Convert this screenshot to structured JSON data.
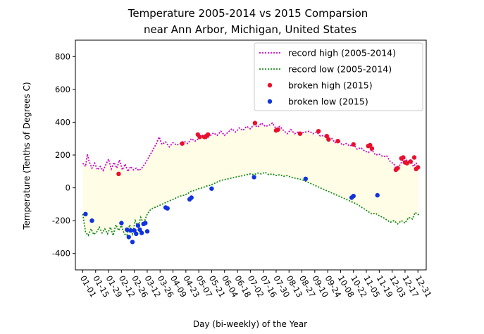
{
  "chart_data": {
    "type": "line",
    "title": "Temperature 2005-2014 vs 2015 Comparsion",
    "subtitle": "near Ann Arbor, Michigan, United States",
    "xlabel": "Day (bi-weekly) of the Year",
    "ylabel": "Temperature (Tenths of Degrees C)",
    "xlim": [
      -8,
      373
    ],
    "ylim": [
      -500,
      900
    ],
    "yticks": [
      -400,
      -200,
      0,
      200,
      400,
      600,
      800
    ],
    "xtick_days": [
      0,
      14,
      28,
      42,
      56,
      70,
      84,
      98,
      112,
      126,
      140,
      154,
      168,
      182,
      196,
      210,
      224,
      238,
      252,
      266,
      280,
      294,
      308,
      322,
      336,
      350,
      364
    ],
    "xtick_labels": [
      "01-01",
      "01-15",
      "01-29",
      "02-12",
      "02-26",
      "03-12",
      "03-26",
      "04-09",
      "04-23",
      "05-07",
      "05-21",
      "06-04",
      "06-18",
      "07-02",
      "07-16",
      "07-30",
      "08-13",
      "08-27",
      "09-10",
      "09-24",
      "10-08",
      "10-22",
      "11-05",
      "11-19",
      "12-03",
      "12-17",
      "12-31"
    ],
    "grid": false,
    "legend_position": "top-right",
    "band_color": "#fffde6",
    "series": [
      {
        "name": "record high (2005-2014)",
        "kind": "dotted-line",
        "color": "#cc00cc",
        "points": [
          [
            0,
            150
          ],
          [
            3,
            130
          ],
          [
            5,
            205
          ],
          [
            7,
            160
          ],
          [
            10,
            120
          ],
          [
            13,
            150
          ],
          [
            16,
            110
          ],
          [
            19,
            130
          ],
          [
            22,
            105
          ],
          [
            25,
            140
          ],
          [
            28,
            175
          ],
          [
            31,
            115
          ],
          [
            34,
            155
          ],
          [
            37,
            120
          ],
          [
            40,
            170
          ],
          [
            43,
            110
          ],
          [
            46,
            145
          ],
          [
            49,
            100
          ],
          [
            52,
            130
          ],
          [
            55,
            110
          ],
          [
            58,
            120
          ],
          [
            61,
            105
          ],
          [
            64,
            120
          ],
          [
            68,
            150
          ],
          [
            72,
            190
          ],
          [
            76,
            230
          ],
          [
            80,
            270
          ],
          [
            83,
            310
          ],
          [
            86,
            265
          ],
          [
            90,
            280
          ],
          [
            94,
            250
          ],
          [
            98,
            275
          ],
          [
            102,
            260
          ],
          [
            106,
            270
          ],
          [
            110,
            285
          ],
          [
            114,
            270
          ],
          [
            118,
            300
          ],
          [
            122,
            285
          ],
          [
            126,
            300
          ],
          [
            130,
            320
          ],
          [
            134,
            300
          ],
          [
            138,
            315
          ],
          [
            142,
            335
          ],
          [
            146,
            320
          ],
          [
            150,
            345
          ],
          [
            154,
            320
          ],
          [
            158,
            340
          ],
          [
            162,
            360
          ],
          [
            166,
            340
          ],
          [
            170,
            365
          ],
          [
            174,
            350
          ],
          [
            178,
            375
          ],
          [
            182,
            360
          ],
          [
            186,
            385
          ],
          [
            190,
            370
          ],
          [
            194,
            395
          ],
          [
            198,
            375
          ],
          [
            202,
            380
          ],
          [
            206,
            395
          ],
          [
            210,
            360
          ],
          [
            214,
            375
          ],
          [
            218,
            350
          ],
          [
            222,
            330
          ],
          [
            226,
            355
          ],
          [
            230,
            330
          ],
          [
            234,
            340
          ],
          [
            238,
            335
          ],
          [
            242,
            340
          ],
          [
            246,
            345
          ],
          [
            250,
            330
          ],
          [
            254,
            340
          ],
          [
            258,
            315
          ],
          [
            262,
            320
          ],
          [
            266,
            300
          ],
          [
            270,
            305
          ],
          [
            274,
            275
          ],
          [
            278,
            290
          ],
          [
            282,
            260
          ],
          [
            286,
            270
          ],
          [
            290,
            255
          ],
          [
            294,
            265
          ],
          [
            298,
            235
          ],
          [
            302,
            245
          ],
          [
            306,
            225
          ],
          [
            310,
            215
          ],
          [
            314,
            230
          ],
          [
            318,
            200
          ],
          [
            322,
            205
          ],
          [
            326,
            190
          ],
          [
            330,
            195
          ],
          [
            334,
            160
          ],
          [
            338,
            145
          ],
          [
            341,
            100
          ],
          [
            344,
            135
          ],
          [
            347,
            165
          ],
          [
            350,
            180
          ],
          [
            353,
            160
          ],
          [
            356,
            170
          ],
          [
            359,
            130
          ],
          [
            362,
            150
          ],
          [
            365,
            125
          ]
        ]
      },
      {
        "name": "record low (2005-2014)",
        "kind": "dotted-line",
        "color": "#1a8c1a",
        "points": [
          [
            0,
            -160
          ],
          [
            3,
            -270
          ],
          [
            6,
            -290
          ],
          [
            9,
            -250
          ],
          [
            12,
            -285
          ],
          [
            15,
            -270
          ],
          [
            18,
            -240
          ],
          [
            21,
            -275
          ],
          [
            24,
            -250
          ],
          [
            27,
            -280
          ],
          [
            30,
            -240
          ],
          [
            33,
            -290
          ],
          [
            36,
            -225
          ],
          [
            39,
            -260
          ],
          [
            42,
            -230
          ],
          [
            45,
            -280
          ],
          [
            48,
            -290
          ],
          [
            51,
            -225
          ],
          [
            54,
            -280
          ],
          [
            57,
            -200
          ],
          [
            60,
            -240
          ],
          [
            63,
            -180
          ],
          [
            66,
            -220
          ],
          [
            70,
            -160
          ],
          [
            74,
            -130
          ],
          [
            78,
            -120
          ],
          [
            82,
            -110
          ],
          [
            86,
            -100
          ],
          [
            90,
            -90
          ],
          [
            94,
            -80
          ],
          [
            98,
            -70
          ],
          [
            102,
            -60
          ],
          [
            106,
            -50
          ],
          [
            110,
            -45
          ],
          [
            114,
            -35
          ],
          [
            118,
            -20
          ],
          [
            122,
            -15
          ],
          [
            126,
            -5
          ],
          [
            130,
            0
          ],
          [
            134,
            10
          ],
          [
            138,
            15
          ],
          [
            142,
            25
          ],
          [
            146,
            35
          ],
          [
            150,
            45
          ],
          [
            154,
            50
          ],
          [
            158,
            55
          ],
          [
            162,
            60
          ],
          [
            166,
            65
          ],
          [
            170,
            70
          ],
          [
            174,
            75
          ],
          [
            178,
            80
          ],
          [
            182,
            85
          ],
          [
            186,
            80
          ],
          [
            190,
            90
          ],
          [
            194,
            85
          ],
          [
            198,
            95
          ],
          [
            202,
            80
          ],
          [
            206,
            85
          ],
          [
            210,
            75
          ],
          [
            214,
            80
          ],
          [
            218,
            70
          ],
          [
            222,
            75
          ],
          [
            226,
            65
          ],
          [
            230,
            60
          ],
          [
            234,
            55
          ],
          [
            238,
            50
          ],
          [
            242,
            40
          ],
          [
            246,
            30
          ],
          [
            250,
            20
          ],
          [
            254,
            10
          ],
          [
            258,
            0
          ],
          [
            262,
            -10
          ],
          [
            266,
            -20
          ],
          [
            270,
            -30
          ],
          [
            274,
            -40
          ],
          [
            278,
            -50
          ],
          [
            282,
            -60
          ],
          [
            286,
            -70
          ],
          [
            290,
            -80
          ],
          [
            294,
            -90
          ],
          [
            298,
            -100
          ],
          [
            302,
            -115
          ],
          [
            306,
            -130
          ],
          [
            310,
            -145
          ],
          [
            314,
            -160
          ],
          [
            318,
            -155
          ],
          [
            322,
            -170
          ],
          [
            326,
            -180
          ],
          [
            330,
            -195
          ],
          [
            334,
            -210
          ],
          [
            338,
            -200
          ],
          [
            342,
            -220
          ],
          [
            346,
            -200
          ],
          [
            350,
            -215
          ],
          [
            354,
            -180
          ],
          [
            358,
            -190
          ],
          [
            361,
            -150
          ],
          [
            365,
            -165
          ]
        ]
      },
      {
        "name": "broken high (2015)",
        "kind": "scatter",
        "color": "#e8102c",
        "points": [
          [
            39,
            85
          ],
          [
            108,
            270
          ],
          [
            125,
            325
          ],
          [
            127,
            310
          ],
          [
            132,
            310
          ],
          [
            134,
            315
          ],
          [
            136,
            325
          ],
          [
            187,
            395
          ],
          [
            210,
            350
          ],
          [
            212,
            355
          ],
          [
            236,
            330
          ],
          [
            256,
            345
          ],
          [
            265,
            315
          ],
          [
            267,
            295
          ],
          [
            277,
            285
          ],
          [
            294,
            265
          ],
          [
            310,
            255
          ],
          [
            312,
            260
          ],
          [
            314,
            240
          ],
          [
            340,
            110
          ],
          [
            342,
            120
          ],
          [
            346,
            180
          ],
          [
            348,
            185
          ],
          [
            350,
            155
          ],
          [
            352,
            150
          ],
          [
            356,
            160
          ],
          [
            360,
            185
          ],
          [
            362,
            115
          ],
          [
            364,
            125
          ]
        ]
      },
      {
        "name": "broken low (2015)",
        "kind": "scatter",
        "color": "#1133dd",
        "points": [
          [
            3,
            -160
          ],
          [
            10,
            -200
          ],
          [
            42,
            -215
          ],
          [
            48,
            -255
          ],
          [
            50,
            -300
          ],
          [
            52,
            -260
          ],
          [
            54,
            -330
          ],
          [
            56,
            -260
          ],
          [
            58,
            -280
          ],
          [
            60,
            -230
          ],
          [
            62,
            -255
          ],
          [
            64,
            -275
          ],
          [
            66,
            -220
          ],
          [
            68,
            -215
          ],
          [
            70,
            -265
          ],
          [
            90,
            -120
          ],
          [
            92,
            -125
          ],
          [
            116,
            -70
          ],
          [
            118,
            -60
          ],
          [
            140,
            -5
          ],
          [
            186,
            65
          ],
          [
            242,
            55
          ],
          [
            292,
            -60
          ],
          [
            294,
            -50
          ],
          [
            320,
            -45
          ]
        ]
      }
    ]
  }
}
